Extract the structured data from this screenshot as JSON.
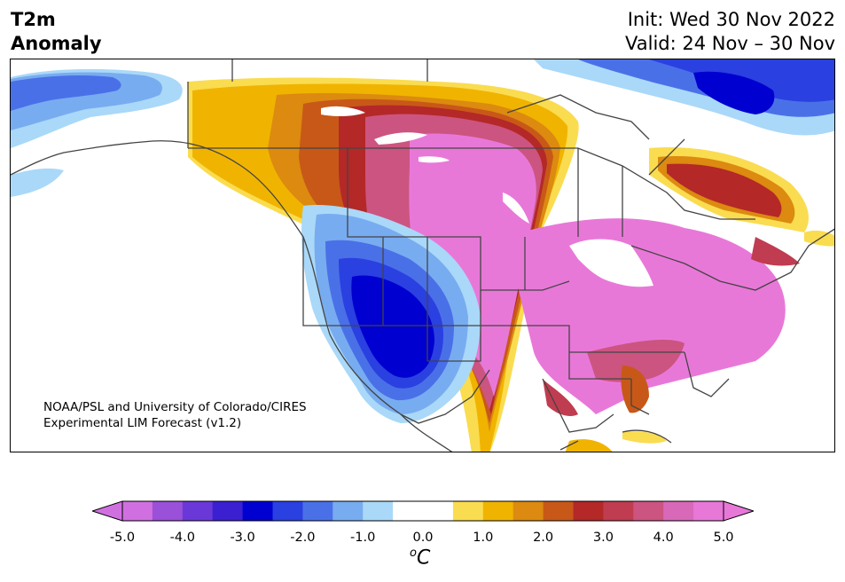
{
  "header": {
    "title_line1": "T2m",
    "title_line2": "Anomaly",
    "init": "Init: Wed 30 Nov 2022",
    "valid": "Valid: 24 Nov – 30 Nov"
  },
  "credit": {
    "line1": "NOAA/PSL and University of Colorado/CIRES",
    "line2": "Experimental LIM Forecast (v1.2)"
  },
  "colorbar": {
    "units_sup": "o",
    "units_main": "C",
    "ticks": [
      "-5.0",
      "-4.0",
      "-3.0",
      "-2.0",
      "-1.0",
      "0.0",
      "1.0",
      "2.0",
      "3.0",
      "4.0",
      "5.0"
    ],
    "colors": [
      "#d070e0",
      "#9a50d8",
      "#6a38d8",
      "#3a20d0",
      "#0000d0",
      "#2a40e0",
      "#4a70e8",
      "#78acf0",
      "#aad8f8",
      "#ffffff",
      "#ffffff",
      "#fadc50",
      "#f0b400",
      "#dc8a10",
      "#c85818",
      "#b42828",
      "#c03c50",
      "#cc5480",
      "#d868b8",
      "#e878d8"
    ]
  },
  "map": {
    "regions": [
      "western-canada-warm",
      "northern-plains-warm",
      "eastern-us-warm",
      "southwest-us-cold",
      "alaska-cold",
      "baffin-island-cold",
      "quebec-labrador-warm"
    ]
  }
}
